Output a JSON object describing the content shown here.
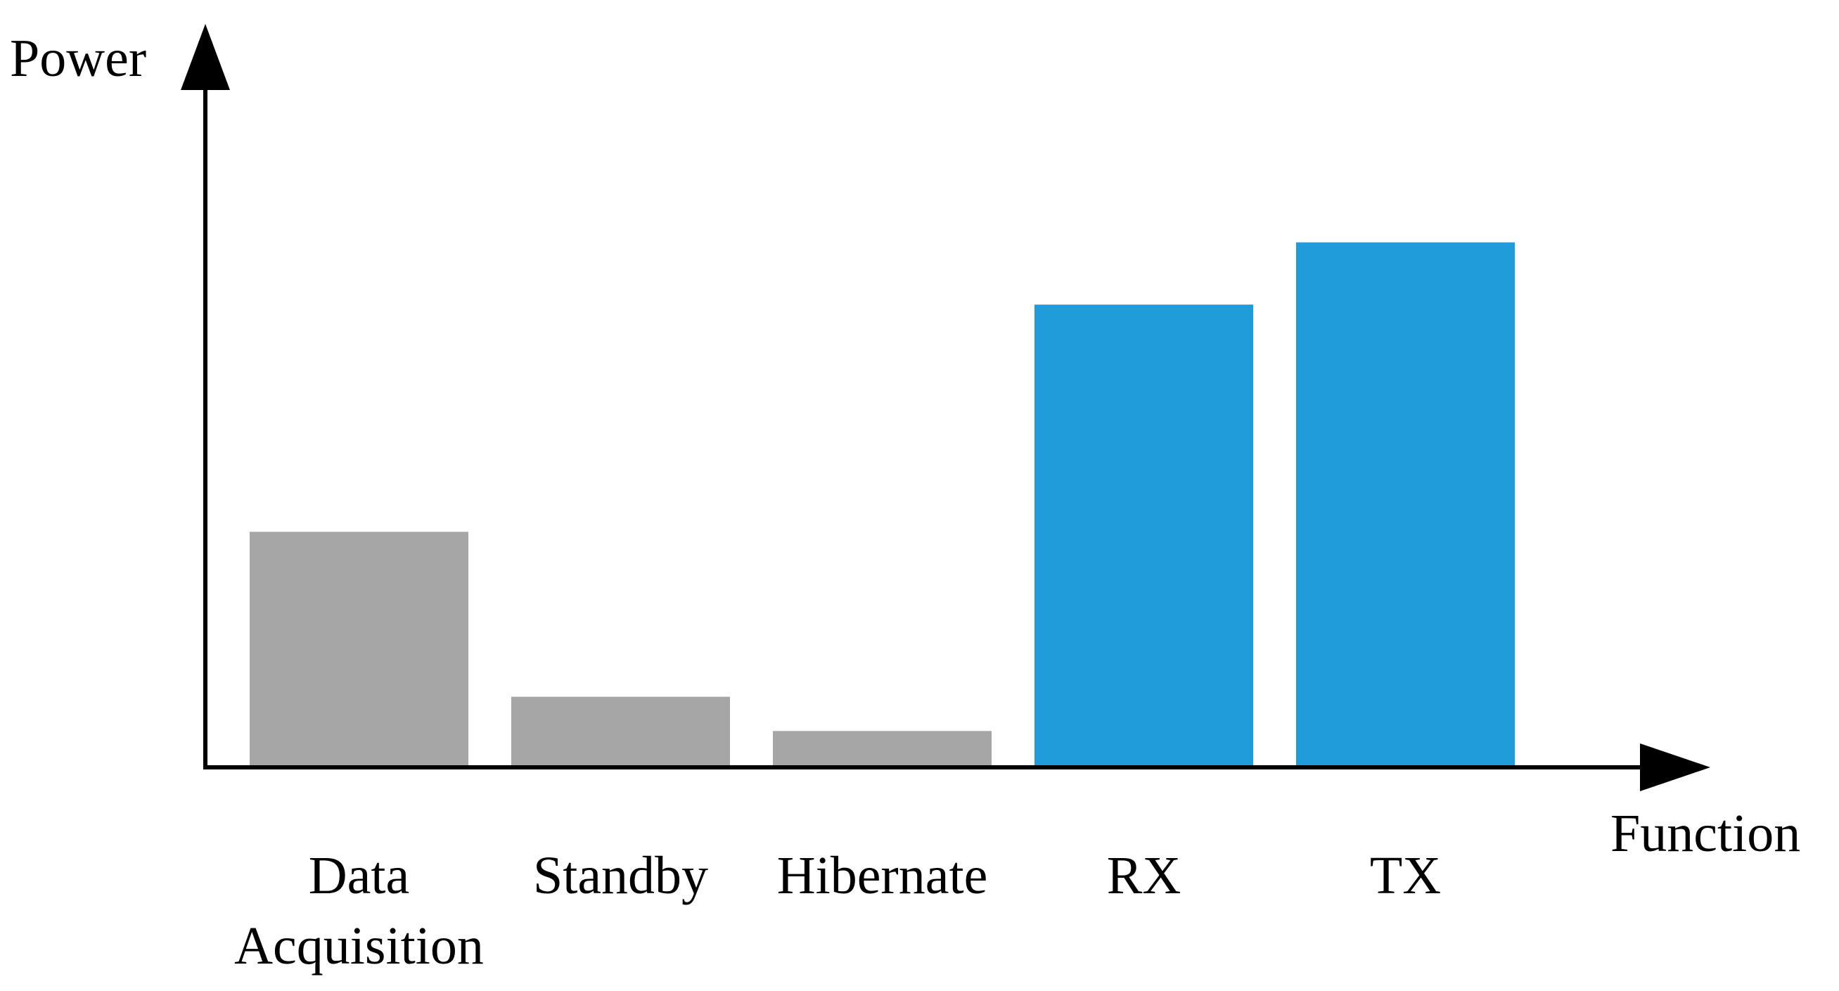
{
  "chart_data": {
    "type": "bar",
    "title": "",
    "xlabel": "Function",
    "ylabel": "Power",
    "categories": [
      [
        "Data",
        "Acquisition"
      ],
      [
        "Standby"
      ],
      [
        "Hibernate"
      ],
      [
        "RX"
      ],
      [
        "TX"
      ]
    ],
    "values": [
      37.5,
      11,
      5.5,
      74,
      84
    ],
    "bar_colors": [
      "#a6a6a6",
      "#a6a6a6",
      "#a6a6a6",
      "#1f9cd9",
      "#1f9cd9"
    ],
    "ylim": [
      0,
      100
    ],
    "y_ticks_shown": false,
    "grid": false,
    "legend": "none"
  },
  "colors": {
    "axis": "#000000",
    "background": "#ffffff"
  }
}
